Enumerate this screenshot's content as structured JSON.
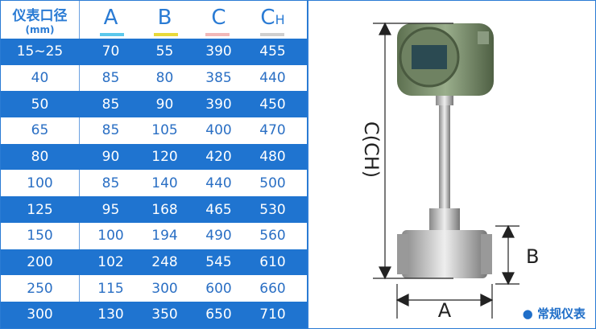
{
  "table": {
    "header": {
      "size_label": "仪表口径",
      "unit": "(mm)",
      "cols": [
        "A",
        "B",
        "C",
        "C"
      ],
      "ch_sub": "H"
    },
    "underline_colors": [
      "#5bc8ec",
      "#e8d93a",
      "#f2b8b8",
      "#cfcfcf"
    ],
    "rows": [
      [
        "15~25",
        "70",
        "55",
        "390",
        "455"
      ],
      [
        "40",
        "85",
        "80",
        "385",
        "440"
      ],
      [
        "50",
        "85",
        "90",
        "390",
        "450"
      ],
      [
        "65",
        "85",
        "105",
        "400",
        "470"
      ],
      [
        "80",
        "90",
        "120",
        "420",
        "480"
      ],
      [
        "100",
        "85",
        "140",
        "440",
        "500"
      ],
      [
        "125",
        "95",
        "168",
        "465",
        "530"
      ],
      [
        "150",
        "100",
        "194",
        "490",
        "560"
      ],
      [
        "200",
        "102",
        "248",
        "545",
        "610"
      ],
      [
        "250",
        "115",
        "300",
        "600",
        "660"
      ],
      [
        "300",
        "130",
        "350",
        "650",
        "710"
      ]
    ]
  },
  "diagram": {
    "label_c": "C(CH)",
    "label_b": "B",
    "label_a": "A",
    "legend": "常规仪表"
  },
  "colors": {
    "accent": "#1f74d0"
  }
}
